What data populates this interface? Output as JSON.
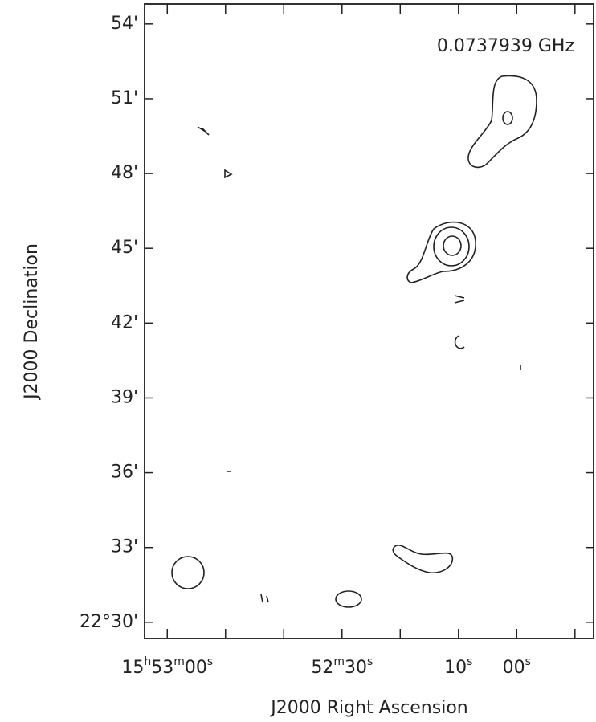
{
  "chart_data": {
    "type": "contour",
    "annotation": "0.0737939 GHz",
    "xlabel": "J2000 Right Ascension",
    "ylabel": "J2000 Declination",
    "xlim": [
      63.9,
      -13.2
    ],
    "xticks": [
      {
        "value": 60,
        "label": "15h53m00s"
      },
      {
        "value": 50,
        "label": null
      },
      {
        "value": 40,
        "label": null
      },
      {
        "value": 30,
        "label": "52m30s"
      },
      {
        "value": 20,
        "label": null
      },
      {
        "value": 10,
        "label": "10s"
      },
      {
        "value": 0,
        "label": "00s"
      },
      {
        "value": -10,
        "label": null
      }
    ],
    "ylim": [
      29.35,
      54.8
    ],
    "yticks": [
      {
        "value": 30,
        "label": "22°30'"
      },
      {
        "value": 33,
        "label": "33'"
      },
      {
        "value": 36,
        "label": "36'"
      },
      {
        "value": 39,
        "label": "39'"
      },
      {
        "value": 42,
        "label": "42'"
      },
      {
        "value": 45,
        "label": "45'"
      },
      {
        "value": 48,
        "label": "48'"
      },
      {
        "value": 51,
        "label": "51'"
      },
      {
        "value": 54,
        "label": "54'"
      }
    ],
    "color": "#222222"
  }
}
